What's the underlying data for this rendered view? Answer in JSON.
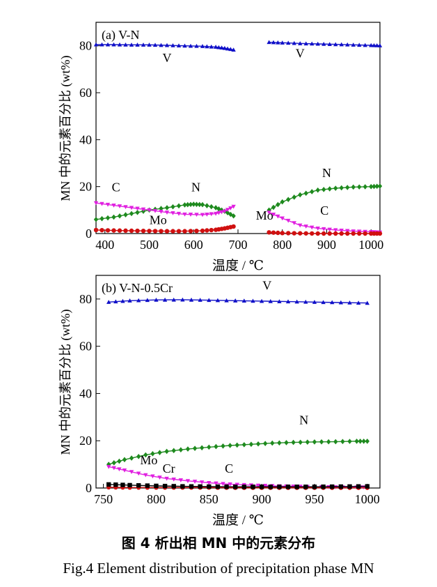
{
  "figure": {
    "caption_cn": "图 4  析出相 MN 中的元素分布",
    "caption_en": "Fig.4   Element distribution of precipitation phase MN"
  },
  "chart_data": [
    {
      "type": "line",
      "panel_label": "(a) V-N",
      "xlabel": "温度 / ℃",
      "ylabel": "MN 中的元素百分比 (wt%)",
      "xlim": [
        380,
        1020
      ],
      "ylim": [
        0,
        90
      ],
      "xticks": [
        400,
        500,
        600,
        700,
        800,
        900,
        1000
      ],
      "yticks": [
        0,
        20,
        40,
        60,
        80
      ],
      "grid": false,
      "series": [
        {
          "name": "V",
          "color": "#1010c8",
          "marker": "triangle",
          "segments": [
            {
              "x": [
                380,
                420,
                460,
                500,
                540,
                580,
                620,
                650,
                670,
                690
              ],
              "y": [
                80.5,
                80.5,
                80.4,
                80.4,
                80.2,
                80.0,
                79.8,
                79.5,
                79.0,
                78.3
              ]
            },
            {
              "x": [
                770,
                800,
                840,
                880,
                920,
                960,
                1000,
                1020
              ],
              "y": [
                81.5,
                81.3,
                81.0,
                80.8,
                80.6,
                80.4,
                80.2,
                80.1
              ]
            }
          ]
        },
        {
          "name": "N",
          "color": "#1e8a1e",
          "marker": "diamond",
          "segments": [
            {
              "x": [
                380,
                420,
                460,
                500,
                540,
                580,
                600,
                620,
                650,
                670,
                690
              ],
              "y": [
                6.0,
                7.0,
                8.5,
                10.0,
                11.0,
                12.2,
                12.5,
                12.3,
                11.0,
                9.5,
                7.5
              ]
            },
            {
              "x": [
                770,
                800,
                840,
                880,
                920,
                960,
                1000,
                1020
              ],
              "y": [
                10.0,
                13.5,
                16.5,
                18.5,
                19.3,
                19.8,
                20.0,
                20.2
              ]
            }
          ]
        },
        {
          "name": "C",
          "color": "#e020e0",
          "marker": "triangle-down",
          "segments": [
            {
              "x": [
                380,
                420,
                460,
                500,
                540,
                580,
                620,
                650,
                670,
                690
              ],
              "y": [
                13.0,
                12.0,
                11.0,
                10.0,
                9.0,
                8.2,
                8.0,
                8.5,
                9.5,
                11.5
              ]
            },
            {
              "x": [
                770,
                800,
                840,
                880,
                920,
                960,
                1000,
                1020
              ],
              "y": [
                9.0,
                6.5,
                3.5,
                2.2,
                1.5,
                1.0,
                0.7,
                0.5
              ]
            }
          ]
        },
        {
          "name": "Mo",
          "color": "#d01010",
          "marker": "circle",
          "segments": [
            {
              "x": [
                380,
                420,
                460,
                500,
                540,
                580,
                620,
                650,
                670,
                690
              ],
              "y": [
                1.5,
                1.3,
                1.2,
                1.1,
                1.0,
                1.0,
                1.2,
                1.6,
                2.2,
                3.0
              ]
            },
            {
              "x": [
                770,
                800,
                840,
                880,
                920,
                960,
                1000,
                1020
              ],
              "y": [
                0.5,
                0.2,
                0.1,
                0.0,
                0.0,
                0.0,
                0.0,
                0.0
              ]
            }
          ]
        }
      ],
      "annotations": [
        {
          "text": "V",
          "x": 540,
          "y": 73
        },
        {
          "text": "V",
          "x": 840,
          "y": 75
        },
        {
          "text": "N",
          "x": 605,
          "y": 18
        },
        {
          "text": "C",
          "x": 425,
          "y": 18
        },
        {
          "text": "Mo",
          "x": 520,
          "y": 4
        },
        {
          "text": "Mo",
          "x": 760,
          "y": 6
        },
        {
          "text": "N",
          "x": 900,
          "y": 24
        },
        {
          "text": "C",
          "x": 895,
          "y": 8
        }
      ]
    },
    {
      "type": "line",
      "panel_label": "(b) V-N-0.5Cr",
      "xlabel": "温度 / ℃",
      "ylabel": "MN 中的元素百分比 (wt%)",
      "xlim": [
        743,
        1012
      ],
      "ylim": [
        0,
        90
      ],
      "xticks": [
        750,
        800,
        850,
        900,
        950,
        1000
      ],
      "yticks": [
        0,
        20,
        40,
        60,
        80
      ],
      "grid": false,
      "series": [
        {
          "name": "V",
          "color": "#1010c8",
          "marker": "triangle",
          "segments": [
            {
              "x": [
                755,
                775,
                800,
                825,
                850,
                875,
                900,
                925,
                950,
                975,
                1000
              ],
              "y": [
                78.7,
                79.3,
                79.6,
                79.7,
                79.5,
                79.3,
                79.1,
                78.9,
                78.7,
                78.5,
                78.3
              ]
            }
          ]
        },
        {
          "name": "N",
          "color": "#1e8a1e",
          "marker": "diamond",
          "segments": [
            {
              "x": [
                755,
                770,
                790,
                810,
                830,
                850,
                870,
                890,
                910,
                930,
                950,
                970,
                990,
                1000
              ],
              "y": [
                10.0,
                12.0,
                14.0,
                15.5,
                16.5,
                17.3,
                18.0,
                18.5,
                19.0,
                19.3,
                19.5,
                19.6,
                19.8,
                19.8
              ]
            }
          ]
        },
        {
          "name": "C",
          "color": "#e020e0",
          "marker": "triangle-down",
          "segments": [
            {
              "x": [
                755,
                770,
                790,
                810,
                830,
                850,
                870,
                890,
                910,
                930,
                950,
                970,
                990,
                1000
              ],
              "y": [
                9.0,
                7.5,
                5.5,
                4.0,
                3.0,
                2.2,
                1.6,
                1.2,
                0.9,
                0.7,
                0.5,
                0.4,
                0.3,
                0.3
              ]
            }
          ]
        },
        {
          "name": "Mo",
          "color": "#d01010",
          "marker": "circle",
          "segments": [
            {
              "x": [
                755,
                775,
                800,
                825,
                850,
                875,
                900,
                925,
                950,
                975,
                1000
              ],
              "y": [
                0.3,
                0.2,
                0.2,
                0.2,
                0.2,
                0.1,
                0.1,
                0.1,
                0.1,
                0.1,
                0.1
              ]
            }
          ]
        },
        {
          "name": "Cr",
          "color": "#000000",
          "marker": "square",
          "segments": [
            {
              "x": [
                755,
                775,
                800,
                825,
                850,
                875,
                900,
                925,
                950,
                975,
                1000
              ],
              "y": [
                1.5,
                1.2,
                0.9,
                0.7,
                0.6,
                0.5,
                0.5,
                0.5,
                0.5,
                0.6,
                0.7
              ]
            }
          ]
        }
      ],
      "annotations": [
        {
          "text": "V",
          "x": 905,
          "y": 84
        },
        {
          "text": "N",
          "x": 940,
          "y": 27
        },
        {
          "text": "Mo",
          "x": 793,
          "y": 10
        },
        {
          "text": "Cr",
          "x": 812,
          "y": 6.5
        },
        {
          "text": "C",
          "x": 869,
          "y": 6.5
        }
      ]
    }
  ]
}
